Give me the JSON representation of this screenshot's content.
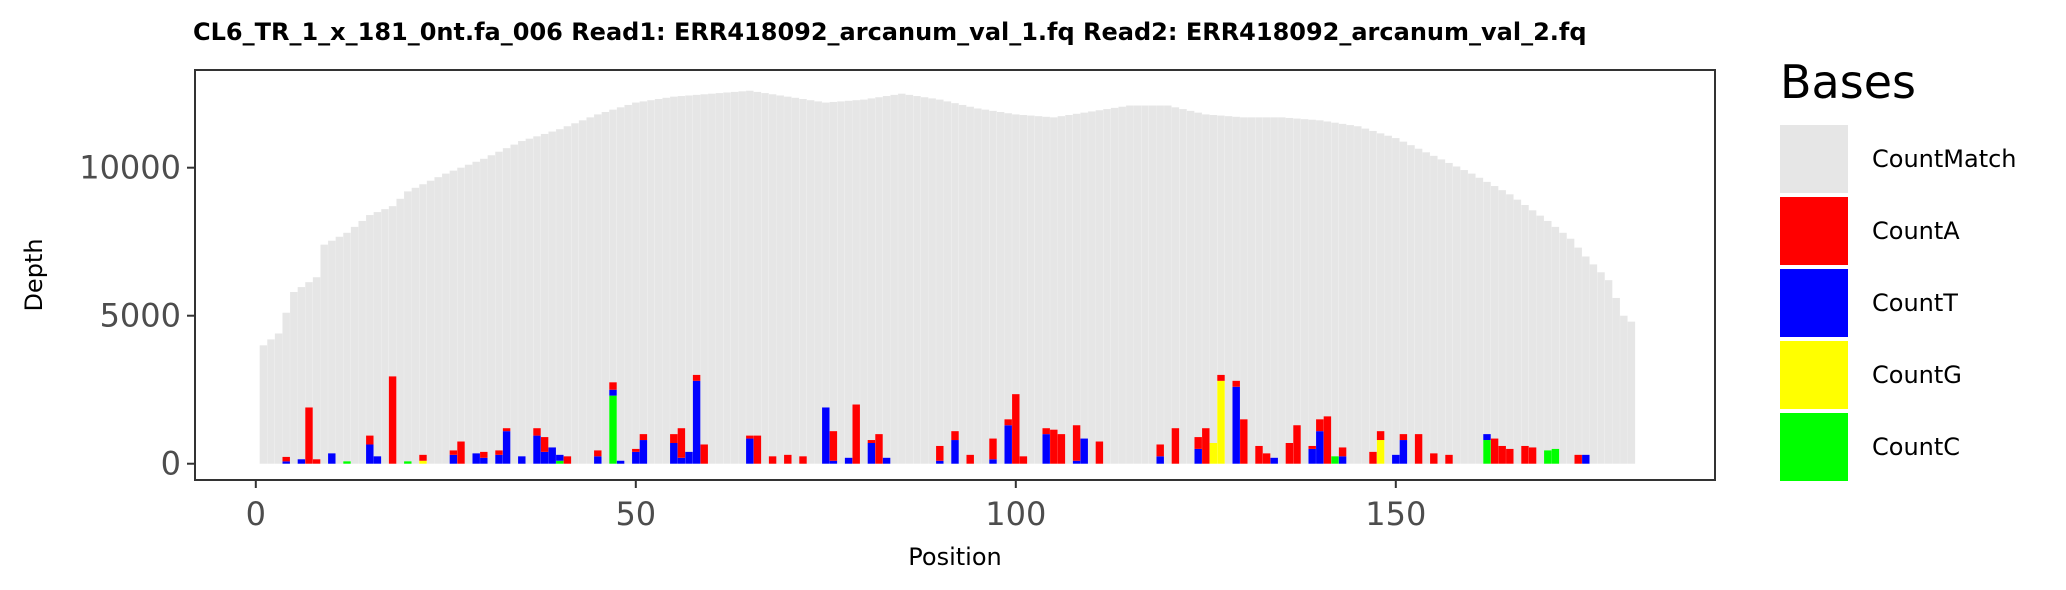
{
  "chart_data": {
    "type": "bar",
    "title": "CL6_TR_1_x_181_0nt.fa_006   Read1: ERR418092_arcanum_val_1.fq   Read2: ERR418092_arcanum_val_2.fq",
    "xlabel": "Position",
    "ylabel": "Depth",
    "xlim": [
      -8,
      192
    ],
    "ylim": [
      -550,
      13300
    ],
    "xticks": [
      0,
      50,
      100,
      150
    ],
    "yticks": [
      0,
      5000,
      10000
    ],
    "grid": false,
    "stacked": true,
    "legend": {
      "title": "Bases",
      "position": "right"
    },
    "series_colors": {
      "CountMatch": "#e6e6e6",
      "CountA": "#ff0000",
      "CountT": "#0000ff",
      "CountG": "#ffff00",
      "CountC": "#00ff00"
    },
    "series_names": [
      "CountMatch",
      "CountA",
      "CountT",
      "CountG",
      "CountC"
    ],
    "match_profile": {
      "note_positions": [
        1,
        2,
        3,
        5,
        8,
        9,
        12,
        15,
        18,
        20,
        25,
        30,
        35,
        40,
        45,
        50,
        55,
        60,
        65,
        70,
        75,
        80,
        85,
        90,
        95,
        100,
        105,
        110,
        115,
        120,
        125,
        130,
        135,
        140,
        145,
        150,
        155,
        160,
        165,
        170,
        173,
        175,
        178,
        180,
        181
      ],
      "depths": [
        4000,
        4200,
        4400,
        5800,
        6300,
        7400,
        7800,
        8400,
        8700,
        9200,
        9800,
        10300,
        10900,
        11300,
        11800,
        12200,
        12400,
        12500,
        12600,
        12400,
        12200,
        12300,
        12500,
        12300,
        12000,
        11800,
        11700,
        11900,
        12100,
        12100,
        11800,
        11700,
        11700,
        11600,
        11400,
        11000,
        10400,
        9800,
        9100,
        8200,
        7600,
        7000,
        6200,
        5000,
        4800
      ]
    },
    "mismatch_bars": [
      {
        "x": 4,
        "A": 150,
        "T": 80
      },
      {
        "x": 6,
        "T": 150
      },
      {
        "x": 7,
        "A": 1900
      },
      {
        "x": 8,
        "A": 150
      },
      {
        "x": 10,
        "T": 350
      },
      {
        "x": 12,
        "C": 80
      },
      {
        "x": 15,
        "A": 300,
        "T": 650
      },
      {
        "x": 16,
        "T": 250
      },
      {
        "x": 18,
        "A": 2950
      },
      {
        "x": 20,
        "C": 80
      },
      {
        "x": 22,
        "A": 200,
        "G": 100
      },
      {
        "x": 26,
        "T": 300,
        "A": 150
      },
      {
        "x": 27,
        "A": 750
      },
      {
        "x": 29,
        "T": 350
      },
      {
        "x": 30,
        "A": 200,
        "T": 200
      },
      {
        "x": 32,
        "T": 300,
        "A": 150
      },
      {
        "x": 33,
        "T": 1100,
        "A": 100
      },
      {
        "x": 35,
        "T": 250
      },
      {
        "x": 37,
        "T": 950,
        "A": 250
      },
      {
        "x": 38,
        "A": 500,
        "T": 400
      },
      {
        "x": 39,
        "T": 550
      },
      {
        "x": 40,
        "T": 200,
        "C": 100
      },
      {
        "x": 41,
        "A": 250
      },
      {
        "x": 45,
        "T": 250,
        "A": 200
      },
      {
        "x": 47,
        "C": 2300,
        "T": 200,
        "A": 250
      },
      {
        "x": 48,
        "T": 100
      },
      {
        "x": 50,
        "T": 400,
        "A": 100
      },
      {
        "x": 51,
        "T": 800,
        "A": 200
      },
      {
        "x": 55,
        "T": 700,
        "A": 300
      },
      {
        "x": 56,
        "A": 1000,
        "T": 200
      },
      {
        "x": 57,
        "T": 400
      },
      {
        "x": 58,
        "T": 2800,
        "A": 200
      },
      {
        "x": 59,
        "A": 650
      },
      {
        "x": 65,
        "T": 850,
        "A": 100
      },
      {
        "x": 66,
        "A": 950
      },
      {
        "x": 68,
        "A": 250
      },
      {
        "x": 70,
        "A": 300
      },
      {
        "x": 72,
        "A": 250
      },
      {
        "x": 75,
        "T": 1900
      },
      {
        "x": 76,
        "A": 1000,
        "T": 100
      },
      {
        "x": 78,
        "T": 200
      },
      {
        "x": 79,
        "A": 2000
      },
      {
        "x": 81,
        "T": 700,
        "A": 100
      },
      {
        "x": 82,
        "A": 1000
      },
      {
        "x": 83,
        "T": 200
      },
      {
        "x": 90,
        "A": 500,
        "T": 100
      },
      {
        "x": 92,
        "T": 800,
        "A": 300
      },
      {
        "x": 94,
        "A": 300
      },
      {
        "x": 97,
        "A": 700,
        "T": 150
      },
      {
        "x": 99,
        "T": 1300,
        "A": 200
      },
      {
        "x": 100,
        "A": 2350
      },
      {
        "x": 101,
        "A": 250
      },
      {
        "x": 104,
        "T": 1000,
        "A": 200
      },
      {
        "x": 105,
        "A": 1150
      },
      {
        "x": 106,
        "A": 1000
      },
      {
        "x": 108,
        "A": 1200,
        "T": 100
      },
      {
        "x": 109,
        "T": 850
      },
      {
        "x": 111,
        "A": 750
      },
      {
        "x": 119,
        "T": 250,
        "A": 400
      },
      {
        "x": 121,
        "A": 1200
      },
      {
        "x": 124,
        "T": 500,
        "A": 400
      },
      {
        "x": 125,
        "A": 1200
      },
      {
        "x": 126,
        "G": 700
      },
      {
        "x": 127,
        "G": 2800,
        "A": 200
      },
      {
        "x": 129,
        "T": 2600,
        "A": 200
      },
      {
        "x": 130,
        "A": 1500
      },
      {
        "x": 132,
        "A": 600
      },
      {
        "x": 133,
        "A": 350
      },
      {
        "x": 134,
        "T": 200
      },
      {
        "x": 136,
        "A": 700
      },
      {
        "x": 137,
        "A": 1300
      },
      {
        "x": 139,
        "T": 500,
        "A": 100
      },
      {
        "x": 140,
        "T": 1100,
        "A": 400
      },
      {
        "x": 141,
        "A": 1600
      },
      {
        "x": 142,
        "C": 250
      },
      {
        "x": 143,
        "T": 250,
        "A": 300
      },
      {
        "x": 147,
        "A": 400
      },
      {
        "x": 148,
        "G": 800,
        "A": 300
      },
      {
        "x": 150,
        "T": 300
      },
      {
        "x": 151,
        "T": 800,
        "A": 200
      },
      {
        "x": 153,
        "A": 1000
      },
      {
        "x": 155,
        "A": 350
      },
      {
        "x": 157,
        "A": 300
      },
      {
        "x": 162,
        "C": 800,
        "T": 200
      },
      {
        "x": 163,
        "A": 850
      },
      {
        "x": 164,
        "A": 600
      },
      {
        "x": 165,
        "A": 500
      },
      {
        "x": 167,
        "A": 600
      },
      {
        "x": 168,
        "A": 550
      },
      {
        "x": 170,
        "C": 450
      },
      {
        "x": 171,
        "C": 500
      },
      {
        "x": 174,
        "A": 300
      },
      {
        "x": 175,
        "T": 300
      }
    ]
  }
}
